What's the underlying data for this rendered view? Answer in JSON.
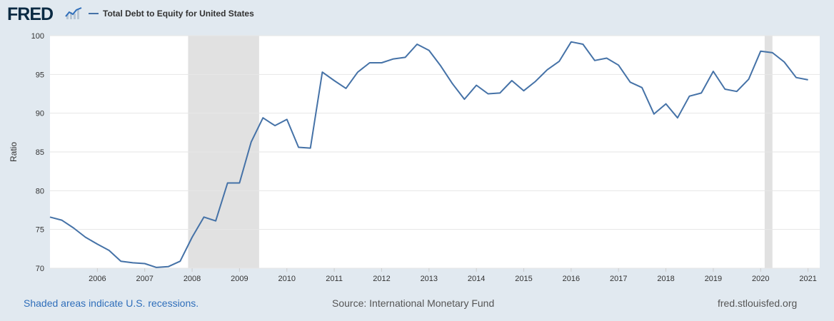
{
  "logo": {
    "text": "FRED",
    "icon": "fred-graph-icon"
  },
  "legend": {
    "series_label": "Total Debt to Equity for United States",
    "color": "#4572a7"
  },
  "footer": {
    "recession_note": "Shaded areas indicate U.S. recessions.",
    "source": "Source: International Monetary Fund",
    "site": "fred.stlouisfed.org"
  },
  "colors": {
    "background": "#e1e9f0",
    "plot": "#ffffff",
    "line": "#4572a7",
    "recession": "#e1e1e1",
    "grid": "#e6e6e6"
  },
  "chart_data": {
    "type": "line",
    "title": "",
    "xlabel": "",
    "ylabel": "Ratio",
    "xlim": [
      "2005-01-01",
      "2021-04-01"
    ],
    "ylim": [
      70,
      100
    ],
    "yticks": [
      70,
      75,
      80,
      85,
      90,
      95,
      100
    ],
    "xticks": [
      "2006",
      "2007",
      "2008",
      "2009",
      "2010",
      "2011",
      "2012",
      "2013",
      "2014",
      "2015",
      "2016",
      "2017",
      "2018",
      "2019",
      "2020",
      "2021"
    ],
    "grid": true,
    "recessions": [
      {
        "start": "2007-12-01",
        "end": "2009-06-01"
      },
      {
        "start": "2020-02-01",
        "end": "2020-04-01"
      }
    ],
    "series": [
      {
        "name": "Total Debt to Equity for United States",
        "x": [
          "2005-01-01",
          "2005-04-01",
          "2005-07-01",
          "2005-10-01",
          "2006-01-01",
          "2006-04-01",
          "2006-07-01",
          "2006-10-01",
          "2007-01-01",
          "2007-04-01",
          "2007-07-01",
          "2007-10-01",
          "2008-01-01",
          "2008-04-01",
          "2008-07-01",
          "2008-10-01",
          "2009-01-01",
          "2009-04-01",
          "2009-07-01",
          "2009-10-01",
          "2010-01-01",
          "2010-04-01",
          "2010-07-01",
          "2010-10-01",
          "2011-01-01",
          "2011-04-01",
          "2011-07-01",
          "2011-10-01",
          "2012-01-01",
          "2012-04-01",
          "2012-07-01",
          "2012-10-01",
          "2013-01-01",
          "2013-04-01",
          "2013-07-01",
          "2013-10-01",
          "2014-01-01",
          "2014-04-01",
          "2014-07-01",
          "2014-10-01",
          "2015-01-01",
          "2015-04-01",
          "2015-07-01",
          "2015-10-01",
          "2016-01-01",
          "2016-04-01",
          "2016-07-01",
          "2016-10-01",
          "2017-01-01",
          "2017-04-01",
          "2017-07-01",
          "2017-10-01",
          "2018-01-01",
          "2018-04-01",
          "2018-07-01",
          "2018-10-01",
          "2019-01-01",
          "2019-04-01",
          "2019-07-01",
          "2019-10-01",
          "2020-01-01",
          "2020-04-01",
          "2020-07-01",
          "2020-10-01",
          "2021-01-01"
        ],
        "values": [
          76.6,
          76.2,
          75.2,
          74.0,
          73.1,
          72.3,
          70.9,
          70.7,
          70.6,
          70.1,
          70.2,
          70.9,
          74.0,
          76.6,
          76.1,
          81.0,
          81.0,
          86.3,
          89.4,
          88.4,
          89.2,
          85.6,
          85.5,
          95.3,
          94.2,
          93.2,
          95.3,
          96.5,
          96.5,
          97.0,
          97.2,
          98.9,
          98.1,
          96.1,
          93.8,
          91.8,
          93.6,
          92.5,
          92.6,
          94.2,
          92.9,
          94.1,
          95.6,
          96.7,
          99.2,
          98.9,
          96.8,
          97.1,
          96.2,
          94.0,
          93.3,
          89.9,
          91.2,
          89.4,
          92.2,
          92.6,
          95.4,
          93.1,
          92.8,
          94.4,
          98.0,
          97.8,
          96.6,
          94.6,
          94.3
        ]
      }
    ]
  }
}
